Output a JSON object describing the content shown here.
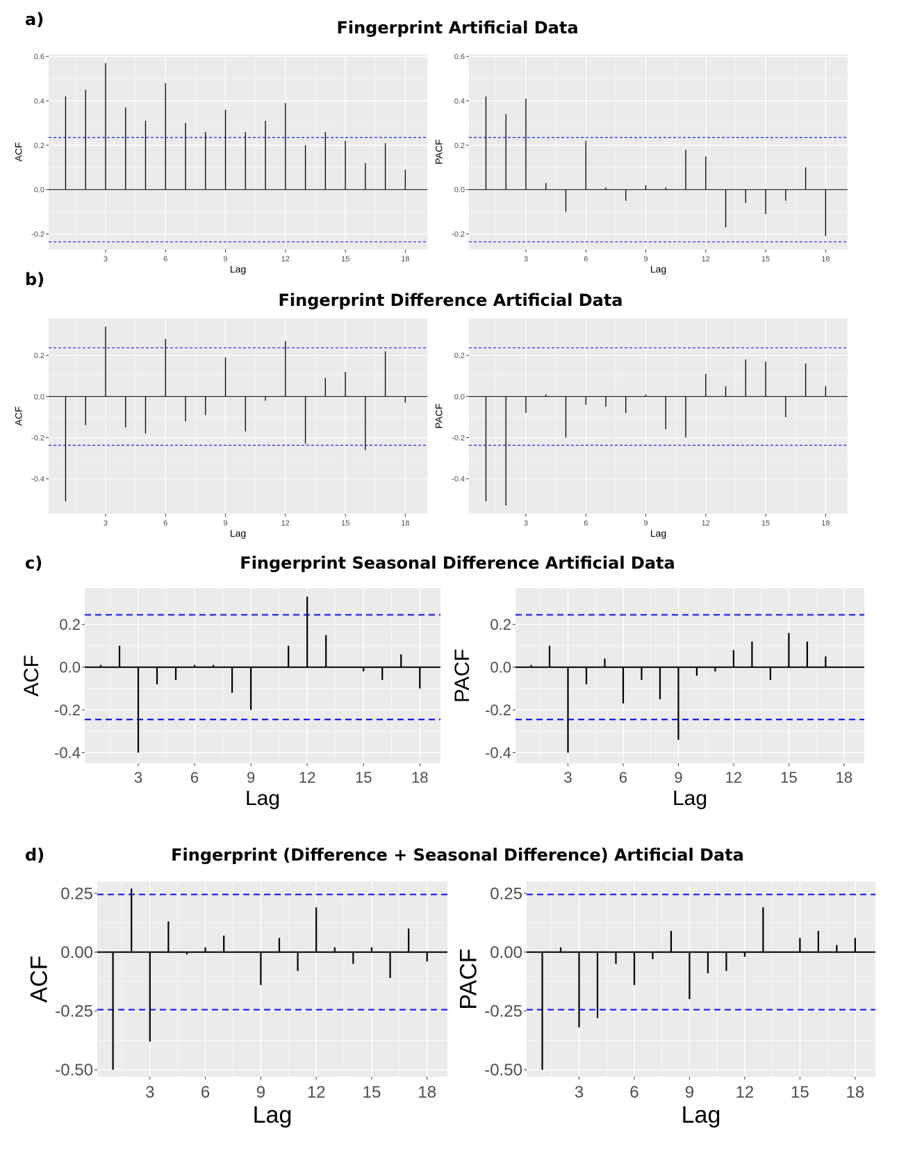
{
  "figure": {
    "sections": [
      {
        "letter": "a)",
        "title": "Fingerprint Artificial Data"
      },
      {
        "letter": "b)",
        "title": "Fingerprint Difference Artificial Data"
      },
      {
        "letter": "c)",
        "title": "Fingerprint Seasonal Difference Artificial Data"
      },
      {
        "letter": "d)",
        "title": "Fingerprint (Difference + Seasonal Difference) Artificial Data"
      }
    ]
  },
  "colors": {
    "panel_bg": "#ebebeb",
    "grid": "#ffffff",
    "bars": "#000000",
    "ci_line": "#1a1aff"
  },
  "chart_data": [
    {
      "id": "a-acf",
      "type": "bar",
      "xlabel": "Lag",
      "ylabel": "ACF",
      "x": [
        1,
        2,
        3,
        4,
        5,
        6,
        7,
        8,
        9,
        10,
        11,
        12,
        13,
        14,
        15,
        16,
        17,
        18
      ],
      "values": [
        0.42,
        0.45,
        0.57,
        0.37,
        0.31,
        0.48,
        0.3,
        0.26,
        0.36,
        0.26,
        0.31,
        0.39,
        0.2,
        0.26,
        0.22,
        0.12,
        0.21,
        0.09
      ],
      "ci": 0.235,
      "ylim": [
        -0.27,
        0.61
      ],
      "xlim": [
        0.15,
        19.1
      ],
      "yticks": [
        -0.2,
        0.0,
        0.2,
        0.4,
        0.6
      ],
      "ytick_labels": [
        "-0.2",
        "0.0",
        "0.2",
        "0.4",
        "0.6"
      ],
      "xticks": [
        3,
        6,
        9,
        12,
        15,
        18
      ],
      "xtick_labels": [
        "3",
        "6",
        "9",
        "12",
        "15",
        "18"
      ],
      "grid": true
    },
    {
      "id": "a-pacf",
      "type": "bar",
      "xlabel": "Lag",
      "ylabel": "PACF",
      "x": [
        1,
        2,
        3,
        4,
        5,
        6,
        7,
        8,
        9,
        10,
        11,
        12,
        13,
        14,
        15,
        16,
        17,
        18
      ],
      "values": [
        0.42,
        0.34,
        0.41,
        0.03,
        -0.1,
        0.22,
        0.01,
        -0.05,
        0.02,
        0.01,
        0.18,
        0.15,
        -0.17,
        -0.06,
        -0.11,
        -0.05,
        0.1,
        -0.21
      ],
      "ci": 0.235,
      "ylim": [
        -0.27,
        0.61
      ],
      "xlim": [
        0.15,
        19.1
      ],
      "yticks": [
        -0.2,
        0.0,
        0.2,
        0.4,
        0.6
      ],
      "ytick_labels": [
        "-0.2",
        "0.0",
        "0.2",
        "0.4",
        "0.6"
      ],
      "xticks": [
        3,
        6,
        9,
        12,
        15,
        18
      ],
      "xtick_labels": [
        "3",
        "6",
        "9",
        "12",
        "15",
        "18"
      ],
      "grid": true
    },
    {
      "id": "b-acf",
      "type": "bar",
      "xlabel": "Lag",
      "ylabel": "ACF",
      "x": [
        1,
        2,
        3,
        4,
        5,
        6,
        7,
        8,
        9,
        10,
        11,
        12,
        13,
        14,
        15,
        16,
        17,
        18
      ],
      "values": [
        -0.51,
        -0.14,
        0.34,
        -0.15,
        -0.18,
        0.28,
        -0.12,
        -0.09,
        0.19,
        -0.17,
        -0.02,
        0.27,
        -0.23,
        0.09,
        0.12,
        -0.26,
        0.22,
        -0.03
      ],
      "ci": 0.237,
      "ylim": [
        -0.57,
        0.38
      ],
      "xlim": [
        0.15,
        19.1
      ],
      "yticks": [
        -0.4,
        -0.2,
        0.0,
        0.2
      ],
      "ytick_labels": [
        "-0.4",
        "-0.2",
        "0.0",
        "0.2"
      ],
      "xticks": [
        3,
        6,
        9,
        12,
        15,
        18
      ],
      "xtick_labels": [
        "3",
        "6",
        "9",
        "12",
        "15",
        "18"
      ],
      "grid": true
    },
    {
      "id": "b-pacf",
      "type": "bar",
      "xlabel": "Lag",
      "ylabel": "PACF",
      "x": [
        1,
        2,
        3,
        4,
        5,
        6,
        7,
        8,
        9,
        10,
        11,
        12,
        13,
        14,
        15,
        16,
        17,
        18
      ],
      "values": [
        -0.51,
        -0.53,
        -0.08,
        0.01,
        -0.2,
        -0.04,
        -0.05,
        -0.08,
        0.01,
        -0.16,
        -0.2,
        0.11,
        0.05,
        0.18,
        0.17,
        -0.1,
        0.16,
        0.05
      ],
      "ci": 0.237,
      "ylim": [
        -0.57,
        0.38
      ],
      "xlim": [
        0.15,
        19.1
      ],
      "yticks": [
        -0.4,
        -0.2,
        0.0,
        0.2
      ],
      "ytick_labels": [
        "-0.4",
        "-0.2",
        "0.0",
        "0.2"
      ],
      "xticks": [
        3,
        6,
        9,
        12,
        15,
        18
      ],
      "xtick_labels": [
        "3",
        "6",
        "9",
        "12",
        "15",
        "18"
      ],
      "grid": true
    },
    {
      "id": "c-acf",
      "type": "bar",
      "xlabel": "Lag",
      "ylabel": "ACF",
      "x": [
        1,
        2,
        3,
        4,
        5,
        6,
        7,
        8,
        9,
        10,
        11,
        12,
        13,
        14,
        15,
        16,
        17,
        18
      ],
      "values": [
        0.01,
        0.1,
        -0.4,
        -0.08,
        -0.06,
        0.01,
        0.01,
        -0.12,
        -0.2,
        0.0,
        0.1,
        0.33,
        0.15,
        0.0,
        -0.02,
        -0.06,
        0.06,
        -0.1
      ],
      "ci": 0.245,
      "ylim": [
        -0.45,
        0.37
      ],
      "xlim": [
        0.15,
        19.1
      ],
      "yticks": [
        -0.4,
        -0.2,
        0.0,
        0.2
      ],
      "ytick_labels": [
        "-0.4",
        "-0.2",
        "0.0",
        "0.2"
      ],
      "xticks": [
        3,
        6,
        9,
        12,
        15,
        18
      ],
      "xtick_labels": [
        "3",
        "6",
        "9",
        "12",
        "15",
        "18"
      ],
      "grid": true
    },
    {
      "id": "c-pacf",
      "type": "bar",
      "xlabel": "Lag",
      "ylabel": "PACF",
      "x": [
        1,
        2,
        3,
        4,
        5,
        6,
        7,
        8,
        9,
        10,
        11,
        12,
        13,
        14,
        15,
        16,
        17,
        18
      ],
      "values": [
        0.01,
        0.1,
        -0.4,
        -0.08,
        0.04,
        -0.17,
        -0.06,
        -0.15,
        -0.34,
        -0.04,
        -0.02,
        0.08,
        0.12,
        -0.06,
        0.16,
        0.12,
        0.05,
        0.0
      ],
      "ci": 0.245,
      "ylim": [
        -0.45,
        0.37
      ],
      "xlim": [
        0.15,
        19.1
      ],
      "yticks": [
        -0.4,
        -0.2,
        0.0,
        0.2
      ],
      "ytick_labels": [
        "-0.4",
        "-0.2",
        "0.0",
        "0.2"
      ],
      "xticks": [
        3,
        6,
        9,
        12,
        15,
        18
      ],
      "xtick_labels": [
        "3",
        "6",
        "9",
        "12",
        "15",
        "18"
      ],
      "grid": true
    },
    {
      "id": "d-acf",
      "type": "bar",
      "xlabel": "Lag",
      "ylabel": "ACF",
      "x": [
        1,
        2,
        3,
        4,
        5,
        6,
        7,
        8,
        9,
        10,
        11,
        12,
        13,
        14,
        15,
        16,
        17,
        18
      ],
      "values": [
        -0.5,
        0.27,
        -0.38,
        0.13,
        -0.01,
        0.02,
        0.07,
        0.0,
        -0.14,
        0.06,
        -0.08,
        0.19,
        0.02,
        -0.05,
        0.02,
        -0.11,
        0.1,
        -0.04
      ],
      "ci": 0.245,
      "ylim": [
        -0.53,
        0.3
      ],
      "xlim": [
        0.15,
        19.1
      ],
      "yticks": [
        -0.5,
        -0.25,
        0.0,
        0.25
      ],
      "ytick_labels": [
        "-0.50",
        "-0.25",
        "0.00",
        "0.25"
      ],
      "xticks": [
        3,
        6,
        9,
        12,
        15,
        18
      ],
      "xtick_labels": [
        "3",
        "6",
        "9",
        "12",
        "15",
        "18"
      ],
      "grid": true
    },
    {
      "id": "d-pacf",
      "type": "bar",
      "xlabel": "Lag",
      "ylabel": "PACF",
      "x": [
        1,
        2,
        3,
        4,
        5,
        6,
        7,
        8,
        9,
        10,
        11,
        12,
        13,
        14,
        15,
        16,
        17,
        18
      ],
      "values": [
        -0.5,
        0.02,
        -0.32,
        -0.28,
        -0.05,
        -0.14,
        -0.03,
        0.09,
        -0.2,
        -0.09,
        -0.08,
        -0.02,
        0.19,
        0.0,
        0.06,
        0.09,
        0.03,
        0.06
      ],
      "ci": 0.245,
      "ylim": [
        -0.53,
        0.3
      ],
      "xlim": [
        0.15,
        19.1
      ],
      "yticks": [
        -0.5,
        -0.25,
        0.0,
        0.25
      ],
      "ytick_labels": [
        "-0.50",
        "-0.25",
        "0.00",
        "0.25"
      ],
      "xticks": [
        3,
        6,
        9,
        12,
        15,
        18
      ],
      "xtick_labels": [
        "3",
        "6",
        "9",
        "12",
        "15",
        "18"
      ],
      "grid": true
    }
  ]
}
